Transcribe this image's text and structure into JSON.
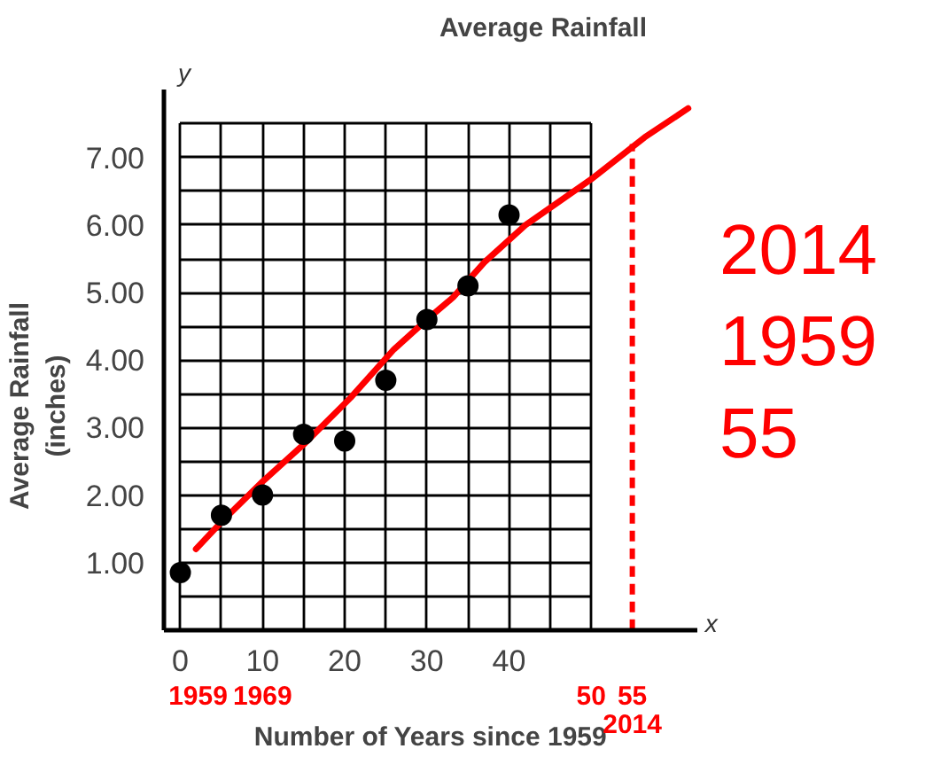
{
  "chart_data": {
    "type": "scatter",
    "title": "Average Rainfall",
    "xlabel": "Number of Years since 1959",
    "ylabel": "Average Rainfall\n(inches)",
    "x": [
      0,
      5,
      10,
      15,
      20,
      25,
      30,
      35,
      40
    ],
    "series": [
      {
        "type": "scatter",
        "color": "#000000",
        "values": [
          0.85,
          1.7,
          2.0,
          2.9,
          2.8,
          3.7,
          4.6,
          5.1,
          6.15
        ]
      },
      {
        "type": "line",
        "marker": "none",
        "color": "#ff0000",
        "x": [
          1.9,
          5,
          10,
          15,
          20.7,
          26,
          30,
          33.2,
          37,
          42,
          50,
          56.5,
          61.8
        ],
        "values": [
          1.2,
          1.6,
          2.2,
          2.75,
          3.44,
          4.16,
          4.6,
          4.93,
          5.45,
          6.0,
          6.68,
          7.3,
          7.73
        ]
      }
    ],
    "xlim": [
      -2,
      63
    ],
    "ylim": [
      0,
      8
    ],
    "xticks": [
      0,
      {
        "value": 5,
        "label": null
      },
      10,
      {
        "value": 15,
        "label": null
      },
      20,
      {
        "value": 25,
        "label": null
      },
      30,
      {
        "value": 35,
        "label": null
      },
      40,
      {
        "value": 45,
        "label": null
      },
      {
        "value": 50,
        "label": null
      }
    ],
    "yticks": [
      {
        "value": 0,
        "label": null
      },
      {
        "value": 0.5,
        "label": null
      },
      {
        "value": 1,
        "label": "1.00"
      },
      {
        "value": 1.5,
        "label": null
      },
      {
        "value": 2,
        "label": "2.00"
      },
      {
        "value": 2.5,
        "label": null
      },
      {
        "value": 3,
        "label": "3.00"
      },
      {
        "value": 3.5,
        "label": null
      },
      {
        "value": 4,
        "label": "4.00"
      },
      {
        "value": 4.5,
        "label": null
      },
      {
        "value": 5,
        "label": "5.00"
      },
      {
        "value": 5.5,
        "label": null
      },
      {
        "value": 6,
        "label": "6.00"
      },
      {
        "value": 6.5,
        "label": null
      },
      {
        "value": 7,
        "label": "7.00"
      },
      {
        "value": 7.5,
        "label": null
      }
    ],
    "ref_lines": [
      {
        "axis": "x",
        "value": 55,
        "color": "#ff0000",
        "line_style": "dashed"
      }
    ],
    "annotations": [
      "y",
      "x",
      "2014",
      "1959",
      "55",
      "1959",
      "1969",
      "50",
      "55",
      "2014"
    ],
    "grid": true,
    "marker": "circle"
  }
}
